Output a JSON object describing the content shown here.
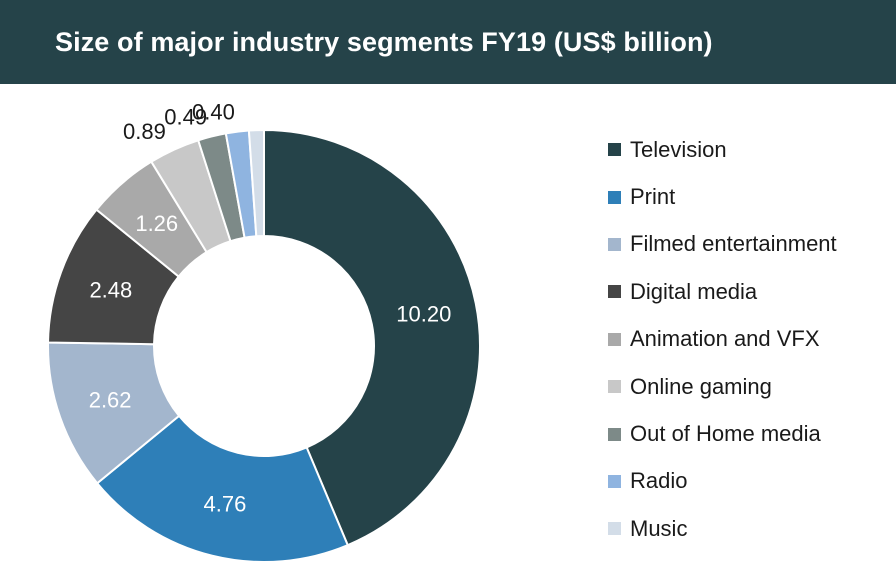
{
  "header": {
    "title": "Size of major industry segments FY19 (US$ billion)"
  },
  "chart_data": {
    "type": "pie",
    "variant": "donut",
    "title": "Size of major industry segments FY19 (US$ billion)",
    "legend_position": "right",
    "categories": [
      "Television",
      "Print",
      "Filmed entertainment",
      "Digital media",
      "Animation and VFX",
      "Online gaming",
      "Out of Home media",
      "Radio",
      "Music"
    ],
    "values": [
      10.2,
      4.76,
      2.62,
      2.48,
      1.26,
      0.89,
      0.49,
      0.4,
      0.26
    ],
    "data_labels": [
      "10.20",
      "4.76",
      "2.62",
      "2.48",
      "1.26",
      "0.89",
      "0.49",
      "0.40",
      ""
    ],
    "colors": [
      "#254349",
      "#2e7fb8",
      "#a3b6cd",
      "#454545",
      "#a9a9a9",
      "#c8c8c8",
      "#7d8a88",
      "#8fb4e0",
      "#d3dde8"
    ],
    "label_colors": [
      "#ffffff",
      "#ffffff",
      "#ffffff",
      "#ffffff",
      "#ffffff",
      "#1a1a1a",
      "#1a1a1a",
      "#1a1a1a",
      "#1a1a1a"
    ]
  }
}
